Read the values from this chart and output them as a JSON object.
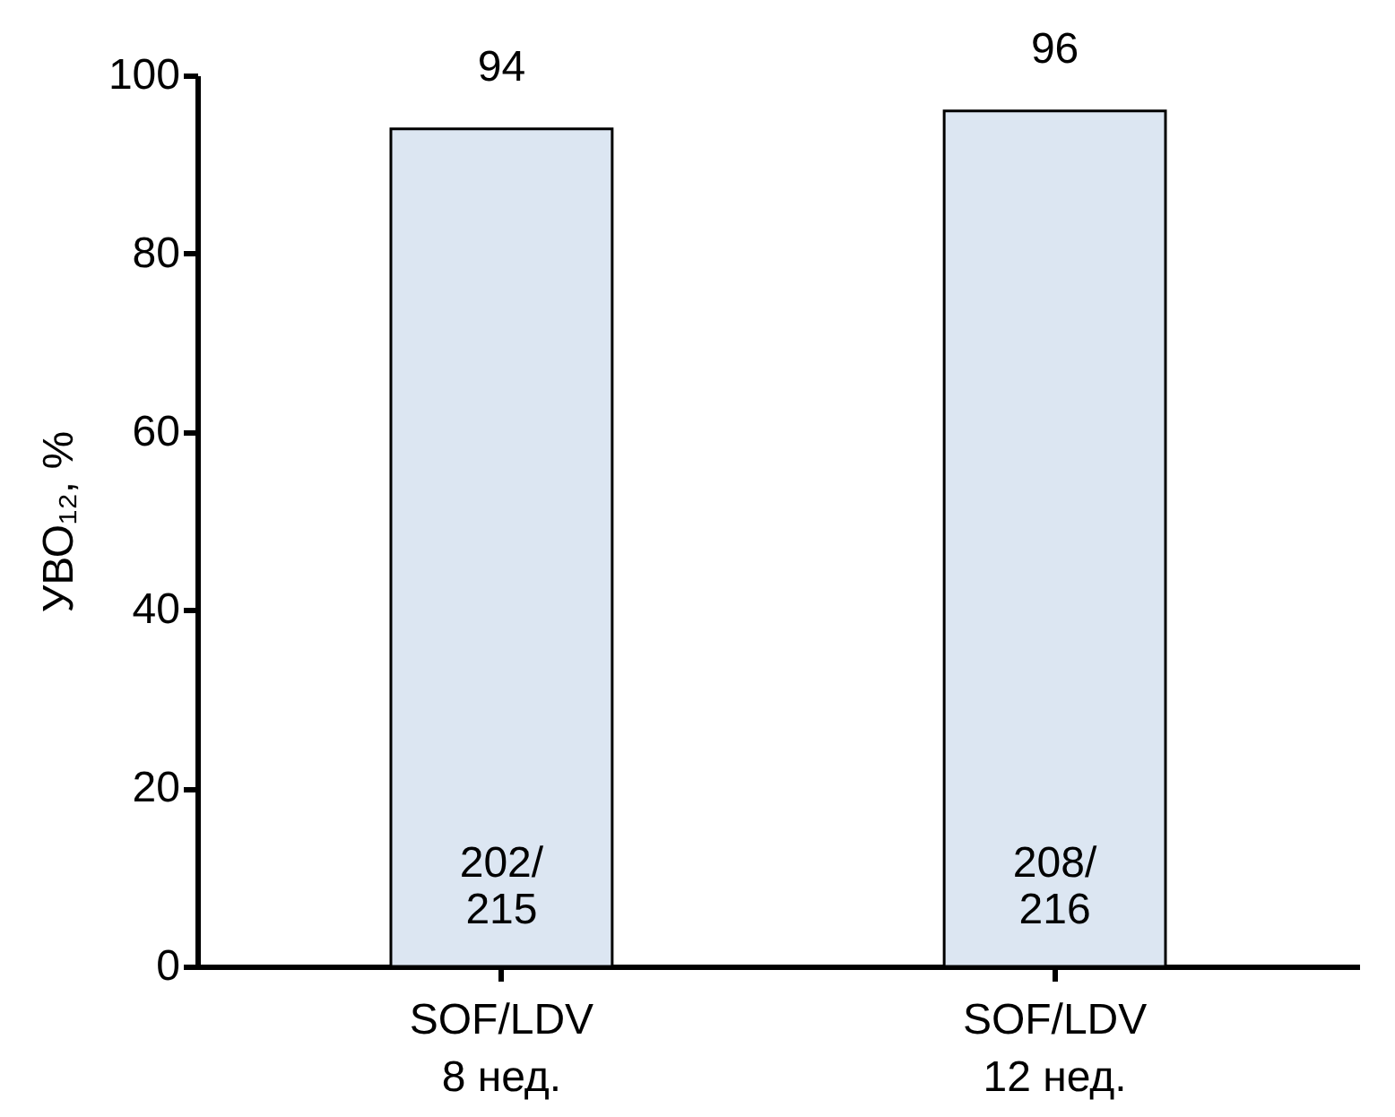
{
  "chart_data": {
    "type": "bar",
    "categories": [
      "SOF/LDV\n8 нед.",
      "SOF/LDV\n12 нед."
    ],
    "values": [
      94,
      96
    ],
    "color": "#dce6f2",
    "ylabel": "УВО₁₂, %",
    "ylim": [
      0,
      100
    ],
    "yticks": [
      0,
      20,
      40,
      60,
      80,
      100
    ],
    "data_labels": true,
    "grid": false,
    "annotations": [
      "202/\n215",
      "208/\n216"
    ]
  }
}
